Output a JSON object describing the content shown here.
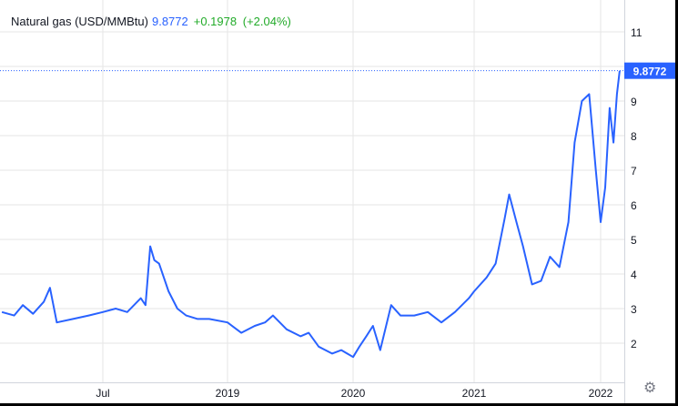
{
  "legend": {
    "symbol": "Natural gas (USD/MMBtu)",
    "last": "9.8772",
    "change": "+0.1978",
    "change_pct": "(+2.04%)"
  },
  "colors": {
    "line": "#2962ff",
    "up": "#22ab29",
    "grid": "#e6e6e6",
    "price_label_bg": "#2962ff"
  },
  "chart_data": {
    "type": "line",
    "title": "Natural gas (USD/MMBtu)",
    "ylim": [
      1.0,
      11.3
    ],
    "y_ticks": [
      2,
      3,
      4,
      5,
      6,
      7,
      8,
      9,
      10,
      11
    ],
    "y_tick_labels": [
      "2",
      "3",
      "4",
      "5",
      "6",
      "7",
      "8",
      "9",
      "",
      "11"
    ],
    "x_ticks": [
      {
        "label": "Jul",
        "date": "2018-07-01"
      },
      {
        "label": "2019",
        "date": "2019-01-01"
      },
      {
        "label": "2020",
        "date": "2020-01-01"
      },
      {
        "label": "2021",
        "date": "2021-01-01"
      },
      {
        "label": "2022",
        "date": "2022-01-01"
      }
    ],
    "grid": true,
    "last_value_label": "9.8772",
    "series": [
      {
        "x": [
          "2018-02-02",
          "2018-02-20",
          "2018-03-05",
          "2018-03-20",
          "2018-04-05",
          "2018-04-14",
          "2018-04-24",
          "2018-05-18",
          "2018-06-10",
          "2018-07-01",
          "2018-07-20",
          "2018-08-06",
          "2018-08-26",
          "2018-09-02",
          "2018-09-09",
          "2018-09-15",
          "2018-09-22",
          "2018-10-06",
          "2018-10-19",
          "2018-11-01",
          "2018-11-18",
          "2018-12-05",
          "2019-01-01",
          "2019-02-10",
          "2019-03-21",
          "2019-04-20",
          "2019-05-13",
          "2019-06-22",
          "2019-08-01",
          "2019-08-25",
          "2019-09-23",
          "2019-11-01",
          "2019-11-28",
          "2020-01-01",
          "2020-01-20",
          "2020-02-10",
          "2020-03-01",
          "2020-03-23",
          "2020-04-25",
          "2020-05-23",
          "2020-07-04",
          "2020-08-14",
          "2020-09-24",
          "2020-11-04",
          "2020-12-16",
          "2021-01-01",
          "2021-02-06",
          "2021-03-04",
          "2021-03-30",
          "2021-04-12",
          "2021-05-03",
          "2021-05-22",
          "2021-06-17",
          "2021-07-13",
          "2021-08-08",
          "2021-09-04",
          "2021-09-30",
          "2021-10-18",
          "2021-11-08",
          "2021-11-29",
          "2021-12-18",
          "2022-01-01",
          "2022-01-14",
          "2022-01-27",
          "2022-02-07",
          "2022-02-17",
          "2022-02-25"
        ],
        "y": [
          2.9,
          2.8,
          3.1,
          2.85,
          3.2,
          3.6,
          2.6,
          2.7,
          2.8,
          2.9,
          3.0,
          2.9,
          3.3,
          3.1,
          4.8,
          4.4,
          4.3,
          3.5,
          3.0,
          2.8,
          2.7,
          2.7,
          2.6,
          2.3,
          2.5,
          2.6,
          2.8,
          2.4,
          2.2,
          2.3,
          1.9,
          1.7,
          1.8,
          1.6,
          1.9,
          2.2,
          2.5,
          1.8,
          3.1,
          2.8,
          2.8,
          2.9,
          2.6,
          2.9,
          3.3,
          3.5,
          3.9,
          4.3,
          5.6,
          6.3,
          5.5,
          4.8,
          3.7,
          3.8,
          4.5,
          4.2,
          5.5,
          7.8,
          9.0,
          9.2,
          7.0,
          5.5,
          6.5,
          8.8,
          7.8,
          9.2,
          9.8772
        ]
      }
    ]
  },
  "settings_icon": "gear-icon"
}
